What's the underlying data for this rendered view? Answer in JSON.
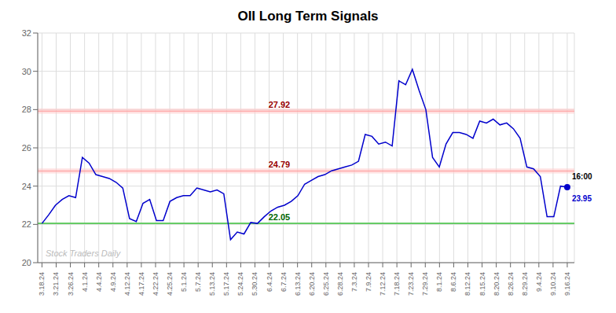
{
  "chart_data": {
    "type": "line",
    "title": "OII Long Term Signals",
    "x": [
      0,
      0.4744,
      0.9487,
      1.4231,
      1.8974,
      2.3718,
      2.8462,
      3.3205,
      3.7949,
      4.2692,
      4.7436,
      5.2179,
      5.6923,
      6.1667,
      6.641,
      7.1154,
      7.5897,
      8.0641,
      8.5385,
      9.0128,
      9.4872,
      9.9615,
      10.4359,
      10.9103,
      11.3846,
      11.859,
      12.3333,
      12.8077,
      13.2821,
      13.7564,
      14.2308,
      14.7051,
      15.1795,
      15.6538,
      16.1282,
      16.6026,
      17.0769,
      17.5513,
      18.0256,
      18.5,
      18.9744,
      19.4487,
      19.9231,
      20.3974,
      20.8718,
      21.3462,
      21.8205,
      22.2949,
      22.7692,
      23.2436,
      23.7179,
      24.1923,
      24.6667,
      25.141,
      25.6154,
      26.0897,
      26.5641,
      27.0385,
      27.5128,
      27.9872,
      28.4615,
      28.9359,
      29.4103,
      29.8846,
      30.359,
      30.8333,
      31.3077,
      31.7821,
      32.2564,
      32.7308,
      33.2051,
      33.6795,
      34.1538,
      34.6282,
      35.1026,
      35.5769,
      36.0513,
      36.5256,
      37
    ],
    "values": [
      22.05,
      22.5,
      23.0,
      23.3,
      23.5,
      23.4,
      25.5,
      25.2,
      24.6,
      24.5,
      24.4,
      24.2,
      23.9,
      22.3,
      22.15,
      23.1,
      23.3,
      22.2,
      22.2,
      23.2,
      23.4,
      23.5,
      23.5,
      23.9,
      23.8,
      23.7,
      23.8,
      23.6,
      21.2,
      21.6,
      21.5,
      22.1,
      22.05,
      22.4,
      22.7,
      22.9,
      23.0,
      23.2,
      23.5,
      24.1,
      24.3,
      24.5,
      24.6,
      24.8,
      24.9,
      25.0,
      25.1,
      25.3,
      26.7,
      26.6,
      26.2,
      26.3,
      26.1,
      29.5,
      29.3,
      30.1,
      29.0,
      28.0,
      25.5,
      25.0,
      26.2,
      26.8,
      26.8,
      26.7,
      26.5,
      27.4,
      27.3,
      27.5,
      27.2,
      27.3,
      27.0,
      26.5,
      25.0,
      24.9,
      24.5,
      22.4,
      22.4,
      24.0,
      23.95
    ],
    "color": "#0000cc",
    "xlim": [
      -0.3,
      37.5
    ],
    "xticks": [
      {
        "value": 0,
        "label": "3.18.24"
      },
      {
        "value": 1,
        "label": "3.21.24"
      },
      {
        "value": 2,
        "label": "3.26.24"
      },
      {
        "value": 3,
        "label": "4.1.24"
      },
      {
        "value": 4,
        "label": "4.4.24"
      },
      {
        "value": 5,
        "label": "4.9.24"
      },
      {
        "value": 6,
        "label": "4.12.24"
      },
      {
        "value": 7,
        "label": "4.17.24"
      },
      {
        "value": 8,
        "label": "4.22.24"
      },
      {
        "value": 9,
        "label": "4.25.24"
      },
      {
        "value": 10,
        "label": "5.1.24"
      },
      {
        "value": 11,
        "label": "5.7.24"
      },
      {
        "value": 12,
        "label": "5.13.24"
      },
      {
        "value": 13,
        "label": "5.17.24"
      },
      {
        "value": 14,
        "label": "5.24.24"
      },
      {
        "value": 15,
        "label": "5.30.24"
      },
      {
        "value": 16,
        "label": "6.4.24"
      },
      {
        "value": 17,
        "label": "6.7.24"
      },
      {
        "value": 18,
        "label": "6.13.24"
      },
      {
        "value": 19,
        "label": "6.20.24"
      },
      {
        "value": 20,
        "label": "6.25.24"
      },
      {
        "value": 21,
        "label": "6.28.24"
      },
      {
        "value": 22,
        "label": "7.3.24"
      },
      {
        "value": 23,
        "label": "7.9.24"
      },
      {
        "value": 24,
        "label": "7.12.24"
      },
      {
        "value": 25,
        "label": "7.18.24"
      },
      {
        "value": 26,
        "label": "7.23.24"
      },
      {
        "value": 27,
        "label": "7.29.24"
      },
      {
        "value": 28,
        "label": "8.1.24"
      },
      {
        "value": 29,
        "label": "8.6.24"
      },
      {
        "value": 30,
        "label": "8.12.24"
      },
      {
        "value": 31,
        "label": "8.15.24"
      },
      {
        "value": 32,
        "label": "8.20.24"
      },
      {
        "value": 33,
        "label": "8.26.24"
      },
      {
        "value": 34,
        "label": "8.29.24"
      },
      {
        "value": 35,
        "label": "9.4.24"
      },
      {
        "value": 36,
        "label": "9.10.24"
      },
      {
        "value": 37,
        "label": "9.16.24"
      }
    ],
    "ylim": [
      20,
      32
    ],
    "yticks": [
      20,
      22,
      24,
      26,
      28,
      30,
      32
    ],
    "grid": true,
    "reference_lines": [
      {
        "y": 27.92,
        "label": "27.92",
        "color": "#ff9999",
        "label_color": "#990000",
        "band_color": "#ffcccc"
      },
      {
        "y": 24.79,
        "label": "24.79",
        "color": "#ff9999",
        "label_color": "#990000",
        "band_color": "#ffcccc"
      },
      {
        "y": 22.05,
        "label": "22.05",
        "color": "#66cc66",
        "label_color": "#006600"
      }
    ],
    "last_point": {
      "time_label": "16:00",
      "price_label": "23.95"
    },
    "watermark": "Stock Traders Daily"
  }
}
